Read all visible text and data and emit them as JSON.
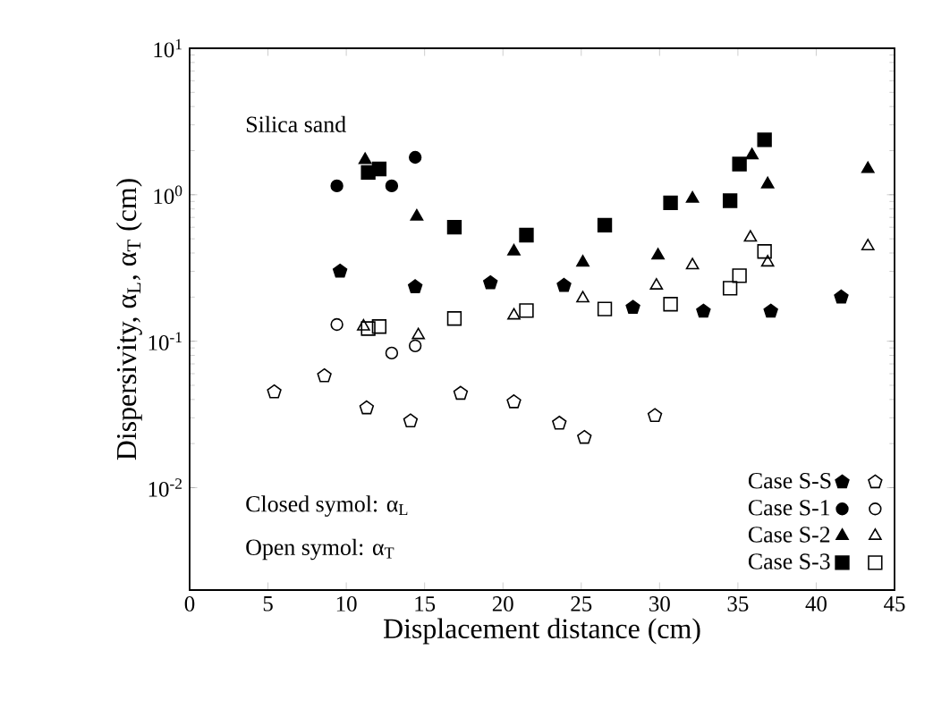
{
  "chart_data": {
    "type": "scatter",
    "xlabel": "Displacement distance (cm)",
    "ylabel": "Dispersivity, α$_{L}$, α$_{T}$ (cm)",
    "xlim": [
      0,
      45
    ],
    "xticks": [
      0,
      5,
      10,
      15,
      20,
      25,
      30,
      35,
      40,
      45
    ],
    "ylim": [
      0.002,
      10
    ],
    "log": "y",
    "yticks": [
      {
        "value": 0.01,
        "label": "10$^{-2}$"
      },
      {
        "value": 0.1,
        "label": "10$^{-1}$"
      },
      {
        "value": 1,
        "label": "10$^{0}$"
      },
      {
        "value": 10,
        "label": "10$^{1}$"
      }
    ],
    "legend": "bottom right",
    "annotations": [
      "Silica sand",
      "Closed symol: α$_{L}$",
      "Open symol: α$_{T}$"
    ],
    "series": [
      {
        "name": "Case S-S",
        "color": "#000000",
        "x": [
          9.6,
          14.4,
          19.2,
          23.9,
          28.3,
          32.8,
          37.1,
          41.6
        ],
        "values": [
          0.3,
          0.235,
          0.25,
          0.24,
          0.17,
          0.16,
          0.16,
          0.2
        ]
      },
      {
        "color": "#000000",
        "x": [
          5.4,
          8.6,
          11.3,
          14.1,
          17.3,
          20.7,
          23.6,
          25.2,
          29.7
        ],
        "values": [
          0.045,
          0.058,
          0.035,
          0.0285,
          0.044,
          0.0385,
          0.0275,
          0.022,
          0.031
        ]
      },
      {
        "name": "Case S-1",
        "color": "#000000",
        "marker": "circle",
        "x": [
          9.4,
          12.9,
          14.4
        ],
        "values": [
          1.15,
          1.15,
          1.8
        ]
      },
      {
        "color": "#000000",
        "marker": "circle",
        "x": [
          9.4,
          12.9,
          14.4
        ],
        "values": [
          0.13,
          0.083,
          0.093
        ]
      },
      {
        "name": "Case S-2",
        "color": "#000000",
        "marker": "triangle",
        "x": [
          11.2,
          14.5,
          20.7,
          25.1,
          29.9,
          32.1,
          35.9,
          36.9,
          43.3
        ],
        "values": [
          1.73,
          0.71,
          0.41,
          0.345,
          0.385,
          0.94,
          1.86,
          1.18,
          1.5
        ]
      },
      {
        "color": "#000000",
        "marker": "triangle",
        "x": [
          11.1,
          14.6,
          20.7,
          25.1,
          29.8,
          32.1,
          35.8,
          36.9,
          43.3
        ],
        "values": [
          0.126,
          0.11,
          0.15,
          0.196,
          0.24,
          0.33,
          0.51,
          0.345,
          0.445
        ]
      },
      {
        "name": "Case S-3",
        "color": "#000000",
        "marker": "square",
        "x": [
          11.4,
          12.1,
          16.9,
          21.5,
          26.5,
          30.7,
          34.5,
          35.1,
          36.7
        ],
        "values": [
          1.42,
          1.5,
          0.6,
          0.53,
          0.62,
          0.88,
          0.91,
          1.62,
          2.37
        ]
      },
      {
        "color": "#000000",
        "marker": "square",
        "x": [
          11.4,
          12.1,
          16.9,
          21.5,
          26.5,
          30.7,
          34.5,
          35.1,
          36.7
        ],
        "values": [
          0.122,
          0.126,
          0.143,
          0.162,
          0.166,
          0.179,
          0.23,
          0.28,
          0.41
        ]
      }
    ]
  }
}
